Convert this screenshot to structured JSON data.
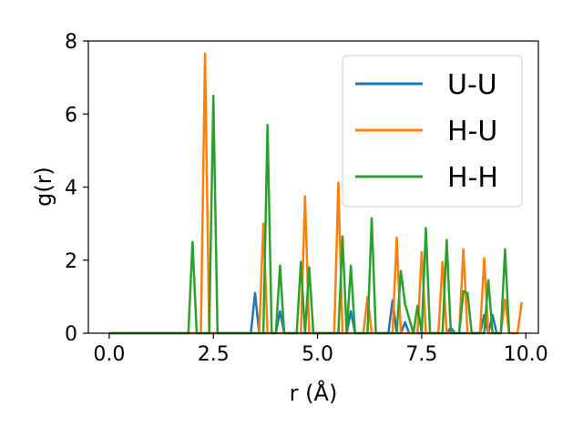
{
  "chart_data": {
    "type": "line",
    "xlabel": "r (Å)",
    "ylabel": "g(r)",
    "xlim": [
      -0.5,
      10.3
    ],
    "ylim": [
      0,
      8
    ],
    "xticks": [
      0.0,
      2.5,
      5.0,
      7.5,
      10.0
    ],
    "xtick_labels": [
      "0.0",
      "2.5",
      "5.0",
      "7.5",
      "10.0"
    ],
    "yticks": [
      0,
      2,
      4,
      6,
      8
    ],
    "ytick_labels": [
      "0",
      "2",
      "4",
      "6",
      "8"
    ],
    "grid": false,
    "legend_position": "top-right",
    "series": [
      {
        "name": "U-U",
        "color": "#1f77b4",
        "x": [
          0.0,
          3.4,
          3.5,
          3.6,
          4.0,
          4.1,
          4.2,
          5.7,
          5.8,
          5.9,
          6.7,
          6.8,
          6.9,
          7.0,
          7.1,
          7.2,
          8.1,
          8.2,
          8.3,
          8.9,
          9.0,
          9.1,
          9.2,
          9.3
        ],
        "y": [
          0.0,
          0.0,
          1.1,
          0.0,
          0.0,
          0.6,
          0.0,
          0.0,
          0.6,
          0.0,
          0.0,
          0.9,
          0.0,
          0.0,
          0.3,
          0.0,
          0.0,
          0.15,
          0.0,
          0.0,
          0.5,
          0.0,
          0.5,
          0.0
        ]
      },
      {
        "name": "H-U",
        "color": "#ff7f0e",
        "x": [
          0.0,
          2.2,
          2.3,
          2.4,
          3.6,
          3.7,
          3.8,
          4.6,
          4.7,
          4.8,
          5.4,
          5.5,
          5.6,
          6.1,
          6.2,
          6.3,
          6.8,
          6.9,
          7.0,
          7.4,
          7.5,
          7.6,
          7.9,
          8.0,
          8.1,
          8.4,
          8.5,
          8.6,
          8.9,
          9.0,
          9.1,
          9.4,
          9.5,
          9.6,
          9.8,
          9.9
        ],
        "y": [
          0.0,
          0.0,
          7.65,
          0.0,
          0.0,
          3.0,
          0.0,
          0.0,
          3.75,
          0.0,
          0.0,
          4.12,
          0.0,
          0.0,
          1.0,
          0.0,
          0.0,
          2.62,
          0.0,
          0.0,
          2.22,
          0.0,
          0.0,
          1.95,
          0.0,
          0.0,
          2.3,
          0.0,
          0.0,
          2.05,
          0.0,
          0.0,
          0.92,
          0.0,
          0.0,
          0.85
        ]
      },
      {
        "name": "H-H",
        "color": "#2ca02c",
        "x": [
          0.0,
          1.9,
          2.0,
          2.1,
          2.4,
          2.5,
          2.6,
          3.7,
          3.8,
          3.9,
          4.0,
          4.1,
          4.2,
          4.5,
          4.6,
          4.7,
          4.8,
          4.9,
          5.5,
          5.6,
          5.7,
          5.8,
          5.9,
          6.2,
          6.3,
          6.4,
          6.9,
          7.0,
          7.1,
          7.3,
          7.4,
          7.5,
          7.6,
          7.7,
          8.0,
          8.1,
          8.2,
          8.4,
          8.5,
          8.6,
          8.7,
          9.0,
          9.1,
          9.2,
          9.3,
          9.4,
          9.5,
          9.6
        ],
        "y": [
          0.0,
          0.0,
          2.5,
          0.0,
          0.0,
          6.5,
          0.0,
          0.0,
          5.7,
          0.0,
          0.0,
          1.85,
          0.0,
          0.0,
          1.95,
          0.0,
          1.8,
          0.0,
          0.0,
          2.65,
          0.0,
          1.85,
          0.0,
          0.0,
          3.15,
          0.0,
          0.0,
          1.7,
          0.8,
          0.0,
          0.75,
          0.0,
          2.88,
          0.0,
          0.0,
          2.55,
          0.0,
          0.0,
          1.15,
          1.1,
          0.0,
          0.0,
          1.45,
          0.0,
          0.0,
          0.0,
          2.3,
          0.0
        ]
      }
    ]
  }
}
